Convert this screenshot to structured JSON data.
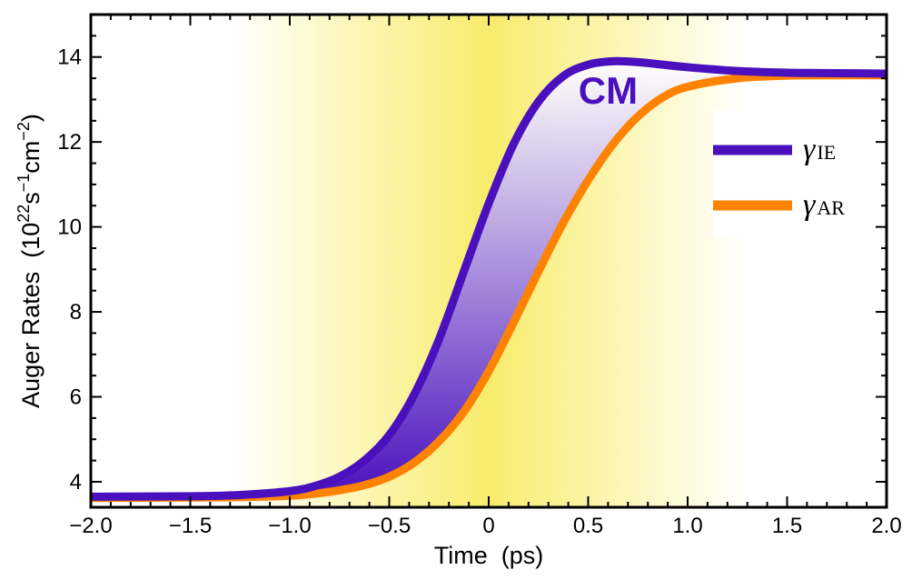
{
  "chart_data": {
    "type": "line",
    "xlabel": "Time  (ps)",
    "ylabel": "Auger Rates  (10^22 s^-1 cm^-2)",
    "ylabel_parts": {
      "prefix": "Auger Rates  (10",
      "exp1": "22",
      "mid1": "s",
      "exp2": "−1",
      "mid2": "cm",
      "exp3": "−2",
      "suffix": ")"
    },
    "xlim": [
      -2.0,
      2.0
    ],
    "ylim": [
      3.4,
      15.0
    ],
    "x_ticks": [
      -2.0,
      -1.5,
      -1.0,
      -0.5,
      0.0,
      0.5,
      1.0,
      1.5,
      2.0
    ],
    "x_tick_labels": [
      "−2.0",
      "−1.5",
      "−1.0",
      "−0.5",
      "0",
      "0.5",
      "1.0",
      "1.5",
      "2.0"
    ],
    "y_ticks": [
      4,
      6,
      8,
      10,
      12,
      14
    ],
    "y_tick_labels": [
      "4",
      "6",
      "8",
      "10",
      "12",
      "14"
    ],
    "annotation": "CM",
    "annotation_position": [
      0.6,
      12.9
    ],
    "x": [
      -2.0,
      -1.5,
      -1.25,
      -1.0,
      -0.875,
      -0.75,
      -0.625,
      -0.5,
      -0.375,
      -0.25,
      -0.125,
      0.0,
      0.125,
      0.25,
      0.375,
      0.5,
      0.625,
      0.75,
      0.875,
      1.0,
      1.25,
      1.5,
      1.75,
      2.0
    ],
    "series": [
      {
        "name": "γIE",
        "symbol": "γ",
        "subscript": "IE",
        "color": "#4a10bd",
        "values": [
          3.65,
          3.66,
          3.69,
          3.78,
          3.9,
          4.12,
          4.5,
          5.1,
          6.05,
          7.35,
          8.95,
          10.55,
          11.95,
          12.95,
          13.55,
          13.82,
          13.9,
          13.88,
          13.82,
          13.76,
          13.67,
          13.63,
          13.62,
          13.61
        ]
      },
      {
        "name": "γAR",
        "symbol": "γ",
        "subscript": "AR",
        "color": "#ff8200",
        "values": [
          3.62,
          3.63,
          3.64,
          3.67,
          3.72,
          3.8,
          3.92,
          4.12,
          4.45,
          4.95,
          5.65,
          6.6,
          7.75,
          8.95,
          10.1,
          11.1,
          11.95,
          12.6,
          13.05,
          13.3,
          13.5,
          13.56,
          13.57,
          13.57
        ]
      }
    ],
    "shaded_region": "between γIE and γAR",
    "background_band": {
      "center_x": 0.0,
      "half_width_x": 1.3,
      "color": "#f8ec6c"
    },
    "legend_position": "right"
  }
}
